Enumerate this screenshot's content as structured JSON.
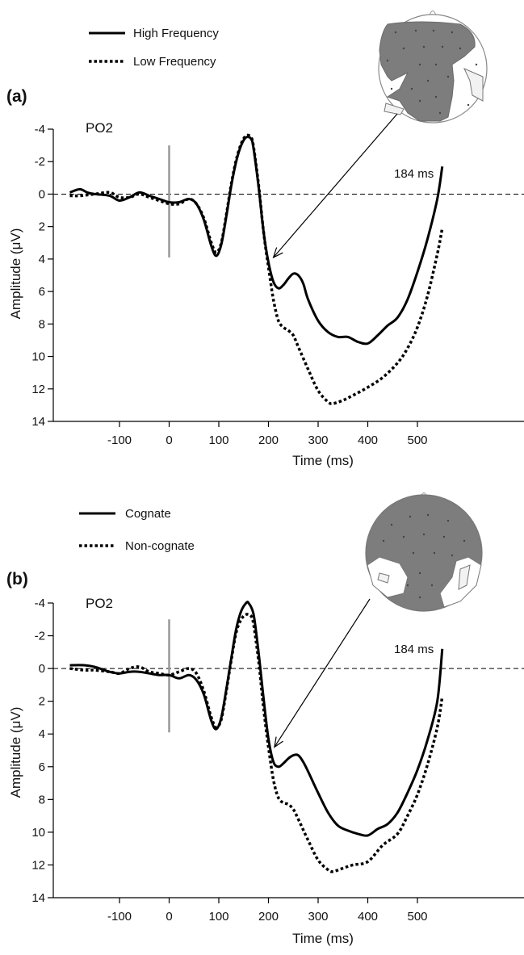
{
  "chart_data": [
    {
      "type": "line",
      "panel_label": "(a)",
      "channel": "PO2",
      "annotation": "184 ms",
      "xlabel": "Time (ms)",
      "ylabel": "Amplitude (μV)",
      "xlim": [
        -200,
        550
      ],
      "ylim": [
        -4,
        14
      ],
      "y_inverted": true,
      "xticks": [
        -100,
        0,
        100,
        200,
        300,
        400,
        500
      ],
      "yticks": [
        -4,
        -2,
        0,
        2,
        4,
        6,
        8,
        10,
        12,
        14
      ],
      "stimulus_onset_x": 0,
      "stimulus_marker_range": [
        -3,
        3.9
      ],
      "annotation_arrow_target": {
        "x": 210,
        "y": 3.9
      },
      "legend_position": "top-left",
      "series": [
        {
          "name": "High Frequency",
          "style": "solid",
          "x": [
            -200,
            -180,
            -165,
            -150,
            -120,
            -100,
            -80,
            -60,
            -40,
            -20,
            0,
            20,
            40,
            55,
            70,
            85,
            95,
            105,
            115,
            125,
            135,
            145,
            155,
            165,
            170,
            180,
            190,
            200,
            210,
            220,
            230,
            240,
            250,
            260,
            270,
            280,
            300,
            320,
            340,
            360,
            380,
            400,
            420,
            440,
            460,
            480,
            500,
            520,
            540,
            550
          ],
          "y": [
            -0.1,
            -0.3,
            -0.1,
            0.0,
            0.1,
            0.4,
            0.2,
            -0.1,
            0.1,
            0.3,
            0.5,
            0.5,
            0.3,
            0.6,
            1.6,
            3.2,
            3.8,
            3.1,
            1.4,
            -0.5,
            -2.0,
            -3.0,
            -3.5,
            -3.4,
            -2.8,
            -0.5,
            2.3,
            4.2,
            5.4,
            5.8,
            5.6,
            5.2,
            4.9,
            5.0,
            5.5,
            6.5,
            7.8,
            8.5,
            8.8,
            8.8,
            9.1,
            9.2,
            8.7,
            8.1,
            7.6,
            6.5,
            4.8,
            2.8,
            0.3,
            -1.7
          ]
        },
        {
          "name": "Low Frequency",
          "style": "dotted",
          "x": [
            -200,
            -180,
            -150,
            -120,
            -100,
            -80,
            -60,
            -40,
            -20,
            0,
            20,
            40,
            55,
            70,
            85,
            95,
            105,
            115,
            125,
            135,
            145,
            155,
            165,
            170,
            180,
            190,
            200,
            210,
            220,
            230,
            240,
            250,
            260,
            280,
            300,
            320,
            330,
            350,
            370,
            400,
            430,
            460,
            480,
            500,
            520,
            540,
            550
          ],
          "y": [
            0.1,
            0.1,
            0.0,
            -0.1,
            0.2,
            0.2,
            0.0,
            0.2,
            0.4,
            0.6,
            0.6,
            0.3,
            0.6,
            1.5,
            3.0,
            3.6,
            3.0,
            1.3,
            -0.6,
            -2.1,
            -3.1,
            -3.6,
            -3.5,
            -2.9,
            -0.6,
            2.3,
            4.5,
            6.5,
            7.8,
            8.2,
            8.4,
            8.7,
            9.4,
            10.8,
            12.1,
            12.8,
            12.9,
            12.7,
            12.4,
            11.9,
            11.3,
            10.4,
            9.5,
            8.2,
            6.3,
            3.7,
            2.1
          ]
        }
      ]
    },
    {
      "type": "line",
      "panel_label": "(b)",
      "channel": "PO2",
      "annotation": "184 ms",
      "xlabel": "Time (ms)",
      "ylabel": "Amplitude (μV)",
      "xlim": [
        -200,
        550
      ],
      "ylim": [
        -4,
        14
      ],
      "y_inverted": true,
      "xticks": [
        -100,
        0,
        100,
        200,
        300,
        400,
        500
      ],
      "yticks": [
        -4,
        -2,
        0,
        2,
        4,
        6,
        8,
        10,
        12,
        14
      ],
      "stimulus_onset_x": 0,
      "stimulus_marker_range": [
        -3,
        3.9
      ],
      "annotation_arrow_target": {
        "x": 212,
        "y": 4.8
      },
      "legend_position": "top-left",
      "series": [
        {
          "name": "Cognate",
          "style": "solid",
          "x": [
            -200,
            -170,
            -150,
            -120,
            -100,
            -80,
            -60,
            -40,
            -20,
            0,
            20,
            40,
            55,
            70,
            85,
            95,
            105,
            115,
            125,
            135,
            145,
            155,
            160,
            170,
            180,
            190,
            200,
            210,
            220,
            230,
            240,
            250,
            260,
            270,
            280,
            300,
            320,
            340,
            360,
            380,
            400,
            420,
            440,
            460,
            480,
            500,
            520,
            540,
            550
          ],
          "y": [
            -0.2,
            -0.2,
            -0.1,
            0.2,
            0.3,
            0.2,
            0.2,
            0.3,
            0.4,
            0.4,
            0.6,
            0.4,
            0.7,
            1.6,
            3.2,
            3.7,
            3.0,
            1.3,
            -0.6,
            -2.4,
            -3.5,
            -4.0,
            -4.0,
            -3.3,
            -1.0,
            1.8,
            4.3,
            5.7,
            6.0,
            5.8,
            5.5,
            5.3,
            5.3,
            5.7,
            6.3,
            7.6,
            8.8,
            9.6,
            9.9,
            10.1,
            10.2,
            9.8,
            9.5,
            8.8,
            7.6,
            6.2,
            4.4,
            2.0,
            -1.2
          ]
        },
        {
          "name": "Non-cognate",
          "style": "dotted",
          "x": [
            -200,
            -170,
            -150,
            -120,
            -100,
            -80,
            -60,
            -40,
            -20,
            0,
            20,
            40,
            55,
            70,
            85,
            95,
            105,
            115,
            125,
            135,
            145,
            155,
            165,
            170,
            180,
            190,
            200,
            210,
            220,
            230,
            240,
            250,
            260,
            280,
            300,
            320,
            330,
            350,
            370,
            400,
            430,
            460,
            480,
            500,
            520,
            540,
            550
          ],
          "y": [
            0.0,
            0.1,
            0.1,
            0.2,
            0.3,
            0.0,
            -0.1,
            0.2,
            0.3,
            0.4,
            0.2,
            0.0,
            0.3,
            1.4,
            3.0,
            3.6,
            3.1,
            1.4,
            -0.5,
            -2.2,
            -3.0,
            -3.3,
            -3.2,
            -2.7,
            -0.5,
            2.4,
            4.8,
            6.8,
            7.9,
            8.2,
            8.3,
            8.6,
            9.2,
            10.5,
            11.7,
            12.3,
            12.4,
            12.2,
            12.0,
            11.8,
            10.8,
            10.1,
            9.0,
            7.7,
            5.9,
            3.6,
            1.7
          ]
        }
      ]
    }
  ]
}
